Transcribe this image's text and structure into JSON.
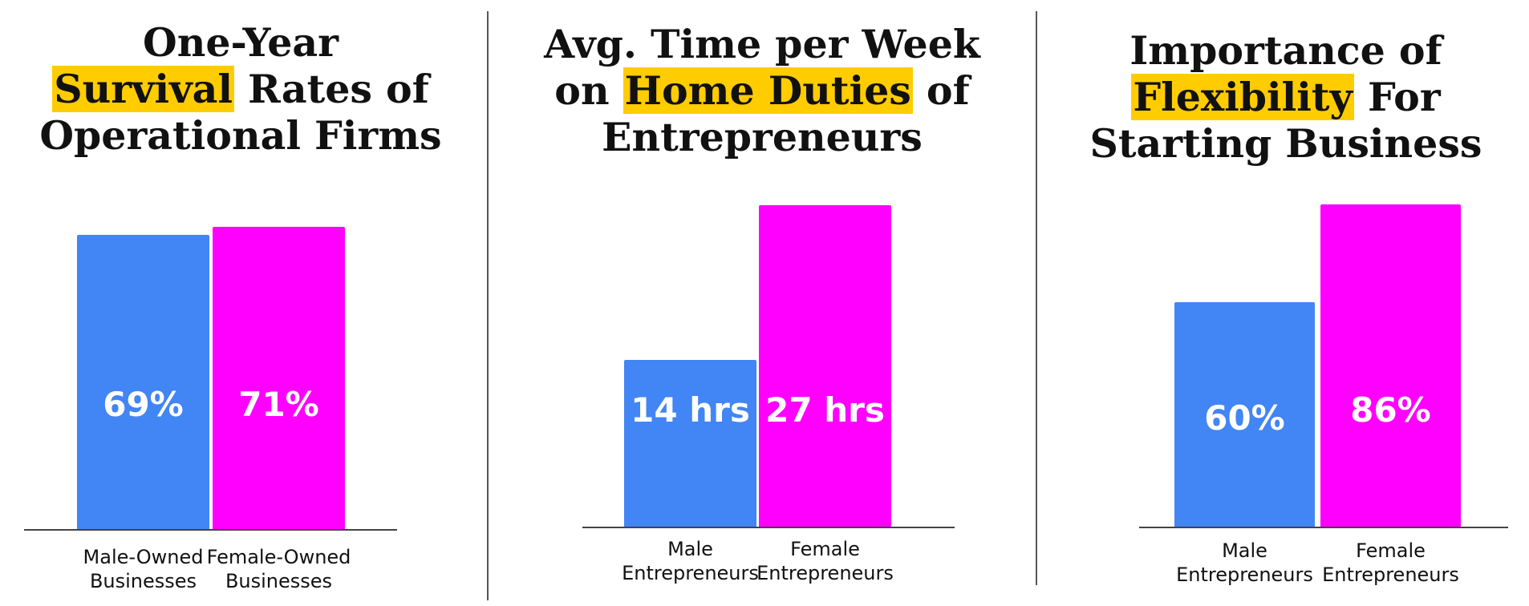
{
  "colors": {
    "male": "#4285f4",
    "female": "#ff00ff",
    "highlight": "#ffcc00",
    "divider": "#555555"
  },
  "chart_data": [
    {
      "type": "bar",
      "title_lines": [
        [
          {
            "text": "One-Year",
            "hl": false
          }
        ],
        [
          {
            "text": "Survival",
            "hl": true
          },
          {
            "text": " Rates of",
            "hl": false
          }
        ],
        [
          {
            "text": "Operational Firms",
            "hl": false
          }
        ]
      ],
      "categories": [
        [
          "Male-Owned",
          "Businesses"
        ],
        [
          "Female-Owned",
          "Businesses"
        ]
      ],
      "values": [
        69,
        71
      ],
      "value_labels": [
        "69%",
        "71%"
      ],
      "ylim": [
        0,
        80
      ],
      "grid": false
    },
    {
      "type": "bar",
      "title_lines": [
        [
          {
            "text": "Avg. Time per Week",
            "hl": false
          }
        ],
        [
          {
            "text": "on ",
            "hl": false
          },
          {
            "text": "Home Duties",
            "hl": true
          },
          {
            "text": " of",
            "hl": false
          }
        ],
        [
          {
            "text": "Entrepreneurs",
            "hl": false
          }
        ]
      ],
      "categories": [
        [
          "Male",
          "Entrepreneurs"
        ],
        [
          "Female",
          "Entrepreneurs"
        ]
      ],
      "values": [
        14,
        27
      ],
      "value_labels": [
        "14 hrs",
        "27 hrs"
      ],
      "ylim": [
        0,
        27
      ],
      "grid": false
    },
    {
      "type": "bar",
      "title_lines": [
        [
          {
            "text": "Importance of",
            "hl": false
          }
        ],
        [
          {
            "text": "Flexibility",
            "hl": true
          },
          {
            "text": " For",
            "hl": false
          }
        ],
        [
          {
            "text": "Starting Business",
            "hl": false
          }
        ]
      ],
      "categories": [
        [
          "Male",
          "Entrepreneurs"
        ],
        [
          "Female",
          "Entrepreneurs"
        ]
      ],
      "values": [
        60,
        86
      ],
      "value_labels": [
        "60%",
        "86%"
      ],
      "ylim": [
        0,
        86
      ],
      "grid": false
    }
  ]
}
